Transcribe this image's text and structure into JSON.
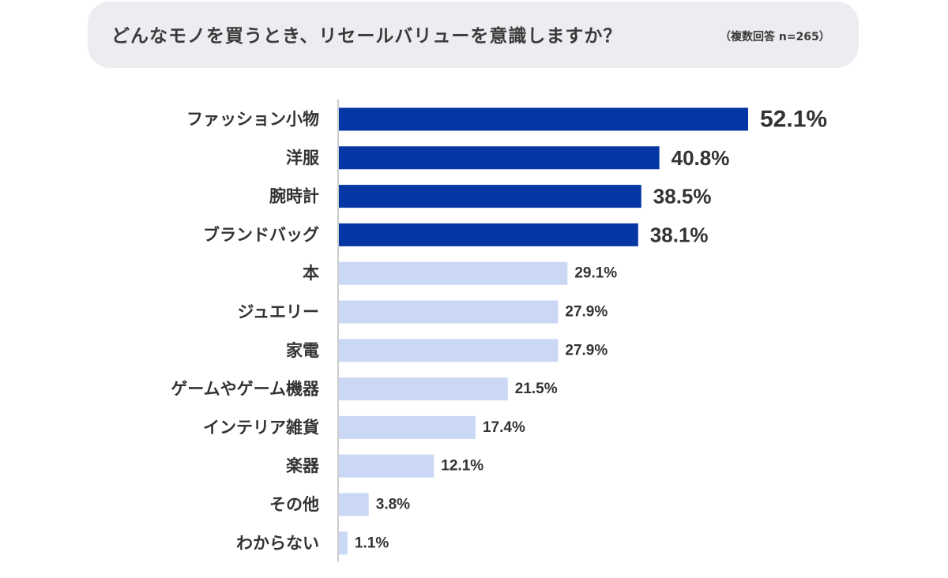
{
  "header": {
    "title": "どんなモノを買うとき、リセールバリューを意識しますか？",
    "note": "（複数回答 n=265）"
  },
  "colors": {
    "highlight": "#0537a4",
    "normal": "#cbd8f5",
    "axis": "#bbbbbb",
    "text": "#333333"
  },
  "chart_data": {
    "type": "bar",
    "orientation": "horizontal",
    "title": "どんなモノを買うとき、リセールバリューを意識しますか？",
    "categories": [
      "ファッション小物",
      "洋服",
      "腕時計",
      "ブランドバッグ",
      "本",
      "ジュエリー",
      "家電",
      "ゲームやゲーム機器",
      "インテリア雑貨",
      "楽器",
      "その他",
      "わからない"
    ],
    "values": [
      52.1,
      40.8,
      38.5,
      38.1,
      29.1,
      27.9,
      27.9,
      21.5,
      17.4,
      12.1,
      3.8,
      1.1
    ],
    "value_labels": [
      "52.1%",
      "40.8%",
      "38.5%",
      "38.1%",
      "29.1%",
      "27.9%",
      "27.9%",
      "21.5%",
      "17.4%",
      "12.1%",
      "3.8%",
      "1.1%"
    ],
    "highlighted_top": 4,
    "xlim": [
      0,
      60
    ],
    "grid": false
  }
}
